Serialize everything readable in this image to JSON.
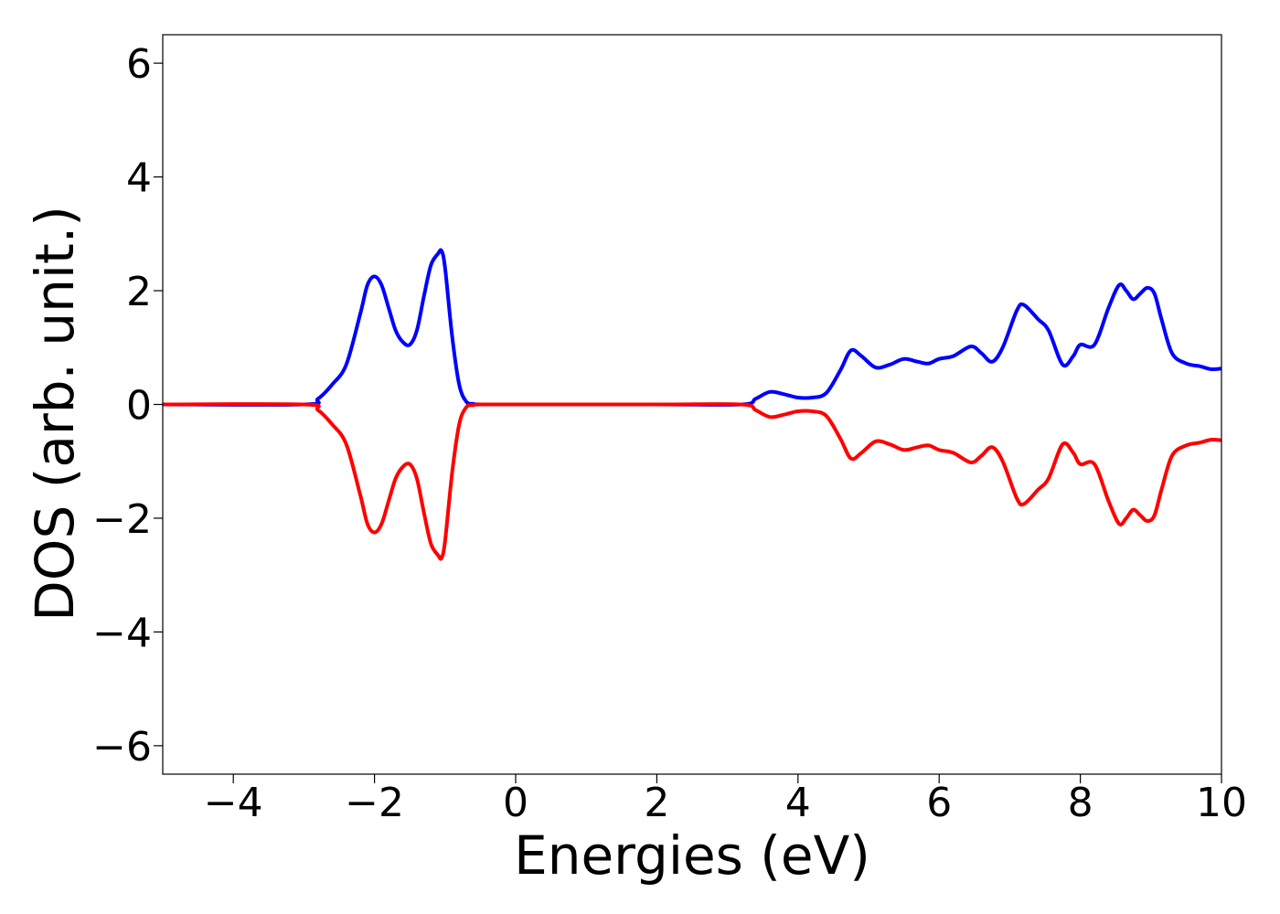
{
  "chart_data": {
    "type": "line",
    "title": "",
    "xlabel": "Energies (eV)",
    "ylabel": "DOS (arb. unit.)",
    "xlim": [
      -5,
      10
    ],
    "ylim": [
      -6.5,
      6.5
    ],
    "xticks": [
      -4,
      -2,
      0,
      2,
      4,
      6,
      8,
      10
    ],
    "xtick_labels": [
      "−4",
      "−2",
      "0",
      "2",
      "4",
      "6",
      "8",
      "10"
    ],
    "yticks": [
      -6,
      -4,
      -2,
      0,
      2,
      4,
      6
    ],
    "ytick_labels": [
      "−6",
      "−4",
      "−2",
      "0",
      "2",
      "4",
      "6"
    ],
    "grid": false,
    "legend": "none",
    "series": [
      {
        "color": "#0000ff",
        "x": [
          -5,
          -3.0,
          -2.8,
          -2.6,
          -2.4,
          -2.2,
          -2.1,
          -2.0,
          -1.9,
          -1.8,
          -1.7,
          -1.6,
          -1.5,
          -1.4,
          -1.3,
          -1.2,
          -1.1,
          -1.05,
          -1.0,
          -0.9,
          -0.8,
          -0.7,
          -0.6,
          -0.5,
          0,
          2,
          3.2,
          3.4,
          3.6,
          3.8,
          4.0,
          4.2,
          4.4,
          4.6,
          4.75,
          4.9,
          5.1,
          5.3,
          5.5,
          5.7,
          5.85,
          6.0,
          6.2,
          6.45,
          6.6,
          6.75,
          6.9,
          7.1,
          7.2,
          7.4,
          7.55,
          7.75,
          7.9,
          8.0,
          8.2,
          8.4,
          8.55,
          8.65,
          8.75,
          8.85,
          8.95,
          9.05,
          9.15,
          9.3,
          9.5,
          9.7,
          9.85,
          10
        ],
        "y": [
          0,
          0,
          0.1,
          0.35,
          0.7,
          1.6,
          2.1,
          2.25,
          2.1,
          1.7,
          1.3,
          1.1,
          1.05,
          1.3,
          1.9,
          2.45,
          2.65,
          2.7,
          2.4,
          1.2,
          0.35,
          0.05,
          0.01,
          0,
          0,
          0,
          0,
          0.1,
          0.22,
          0.18,
          0.12,
          0.12,
          0.2,
          0.6,
          0.95,
          0.85,
          0.65,
          0.7,
          0.8,
          0.75,
          0.72,
          0.8,
          0.85,
          1.02,
          0.9,
          0.75,
          1.0,
          1.65,
          1.75,
          1.5,
          1.3,
          0.7,
          0.85,
          1.05,
          1.05,
          1.7,
          2.1,
          2.0,
          1.85,
          1.95,
          2.05,
          1.95,
          1.5,
          0.9,
          0.72,
          0.67,
          0.62,
          0.63
        ]
      },
      {
        "color": "#ff0000",
        "x": [
          -5,
          -3.0,
          -2.8,
          -2.6,
          -2.4,
          -2.2,
          -2.1,
          -2.0,
          -1.9,
          -1.8,
          -1.7,
          -1.6,
          -1.5,
          -1.4,
          -1.3,
          -1.2,
          -1.1,
          -1.05,
          -1.0,
          -0.9,
          -0.8,
          -0.7,
          -0.6,
          -0.5,
          0,
          2,
          3.2,
          3.4,
          3.6,
          3.8,
          4.0,
          4.2,
          4.4,
          4.6,
          4.75,
          4.9,
          5.1,
          5.3,
          5.5,
          5.7,
          5.85,
          6.0,
          6.2,
          6.45,
          6.6,
          6.75,
          6.9,
          7.1,
          7.2,
          7.4,
          7.55,
          7.75,
          7.9,
          8.0,
          8.2,
          8.4,
          8.55,
          8.65,
          8.75,
          8.85,
          8.95,
          9.05,
          9.15,
          9.3,
          9.5,
          9.7,
          9.85,
          10
        ],
        "y": [
          0,
          0,
          -0.1,
          -0.35,
          -0.7,
          -1.6,
          -2.1,
          -2.25,
          -2.1,
          -1.7,
          -1.3,
          -1.1,
          -1.05,
          -1.3,
          -1.9,
          -2.45,
          -2.65,
          -2.7,
          -2.4,
          -1.2,
          -0.35,
          -0.05,
          -0.01,
          0,
          0,
          0,
          0,
          -0.1,
          -0.22,
          -0.18,
          -0.12,
          -0.12,
          -0.2,
          -0.6,
          -0.95,
          -0.85,
          -0.65,
          -0.7,
          -0.8,
          -0.75,
          -0.72,
          -0.8,
          -0.85,
          -1.02,
          -0.9,
          -0.75,
          -1.0,
          -1.65,
          -1.75,
          -1.5,
          -1.3,
          -0.7,
          -0.85,
          -1.05,
          -1.05,
          -1.7,
          -2.1,
          -2.0,
          -1.85,
          -1.95,
          -2.05,
          -1.95,
          -1.5,
          -0.9,
          -0.72,
          -0.67,
          -0.62,
          -0.63
        ]
      }
    ]
  }
}
